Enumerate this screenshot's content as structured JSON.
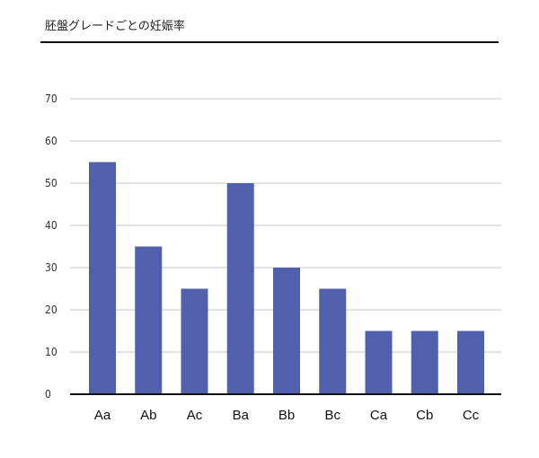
{
  "chart_data": {
    "type": "bar",
    "title": "胚盤グレードごとの妊娠率",
    "xlabel": "",
    "ylabel": "",
    "categories": [
      "Aa",
      "Ab",
      "Ac",
      "Ba",
      "Bb",
      "Bc",
      "Ca",
      "Cb",
      "Cc"
    ],
    "values": [
      55,
      35,
      25,
      50,
      30,
      25,
      15,
      15,
      15
    ],
    "ylim": [
      0,
      70
    ],
    "yticks": [
      0,
      10,
      20,
      30,
      40,
      50,
      60,
      70
    ],
    "grid": true,
    "legend": "none",
    "colors": {
      "bar": "#5060AD",
      "grid": "#c8c8c8",
      "axis": "#111111"
    }
  }
}
